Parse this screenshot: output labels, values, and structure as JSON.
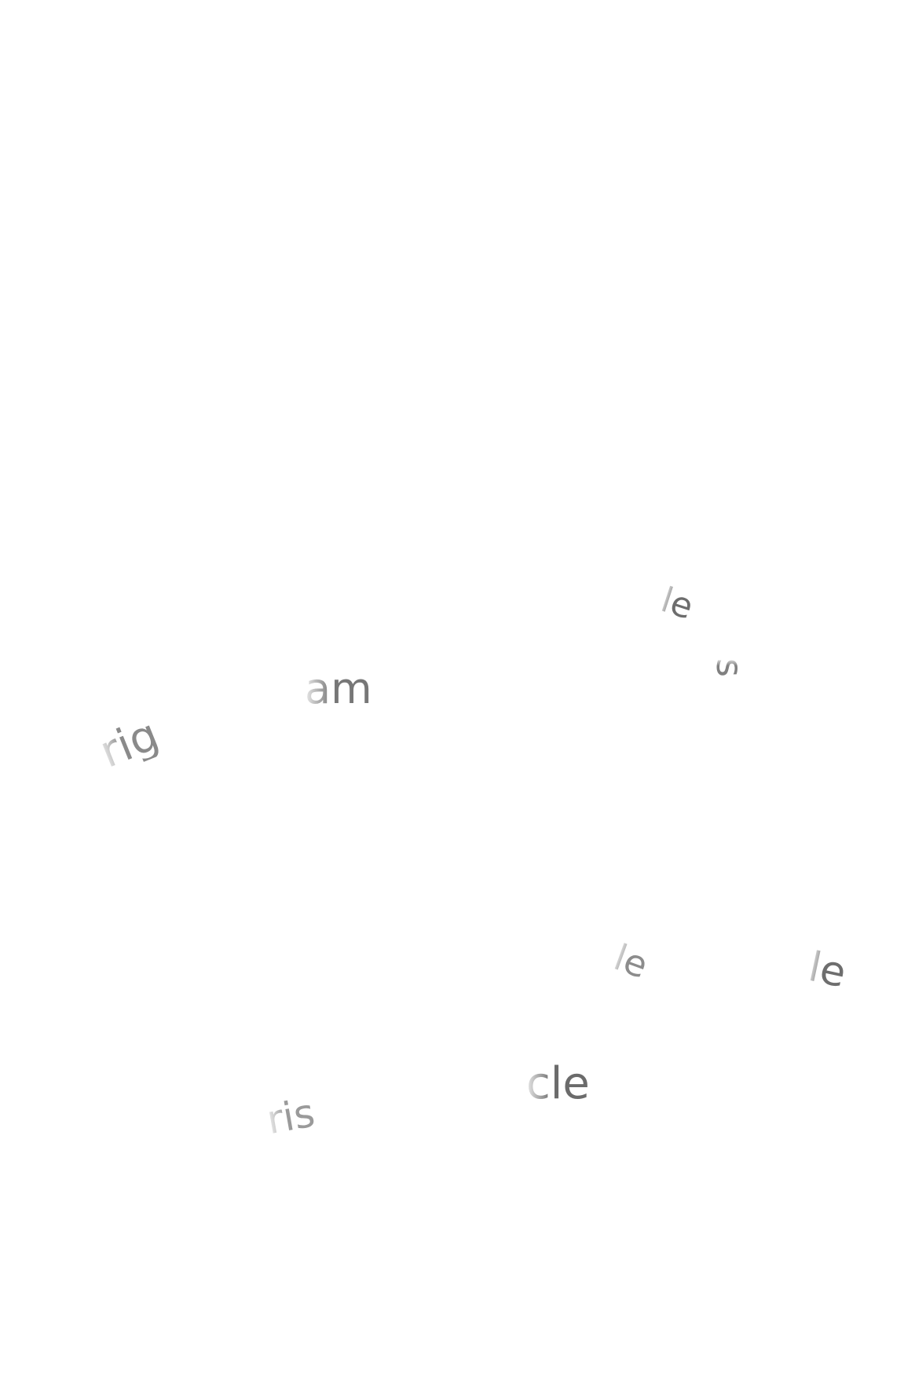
{
  "fragments": [
    {
      "text": "le"
    },
    {
      "text": "am"
    },
    {
      "text": "s"
    },
    {
      "text": "rig"
    },
    {
      "text": "le"
    },
    {
      "text": "le"
    },
    {
      "text": "cle"
    },
    {
      "text": "ris"
    }
  ]
}
